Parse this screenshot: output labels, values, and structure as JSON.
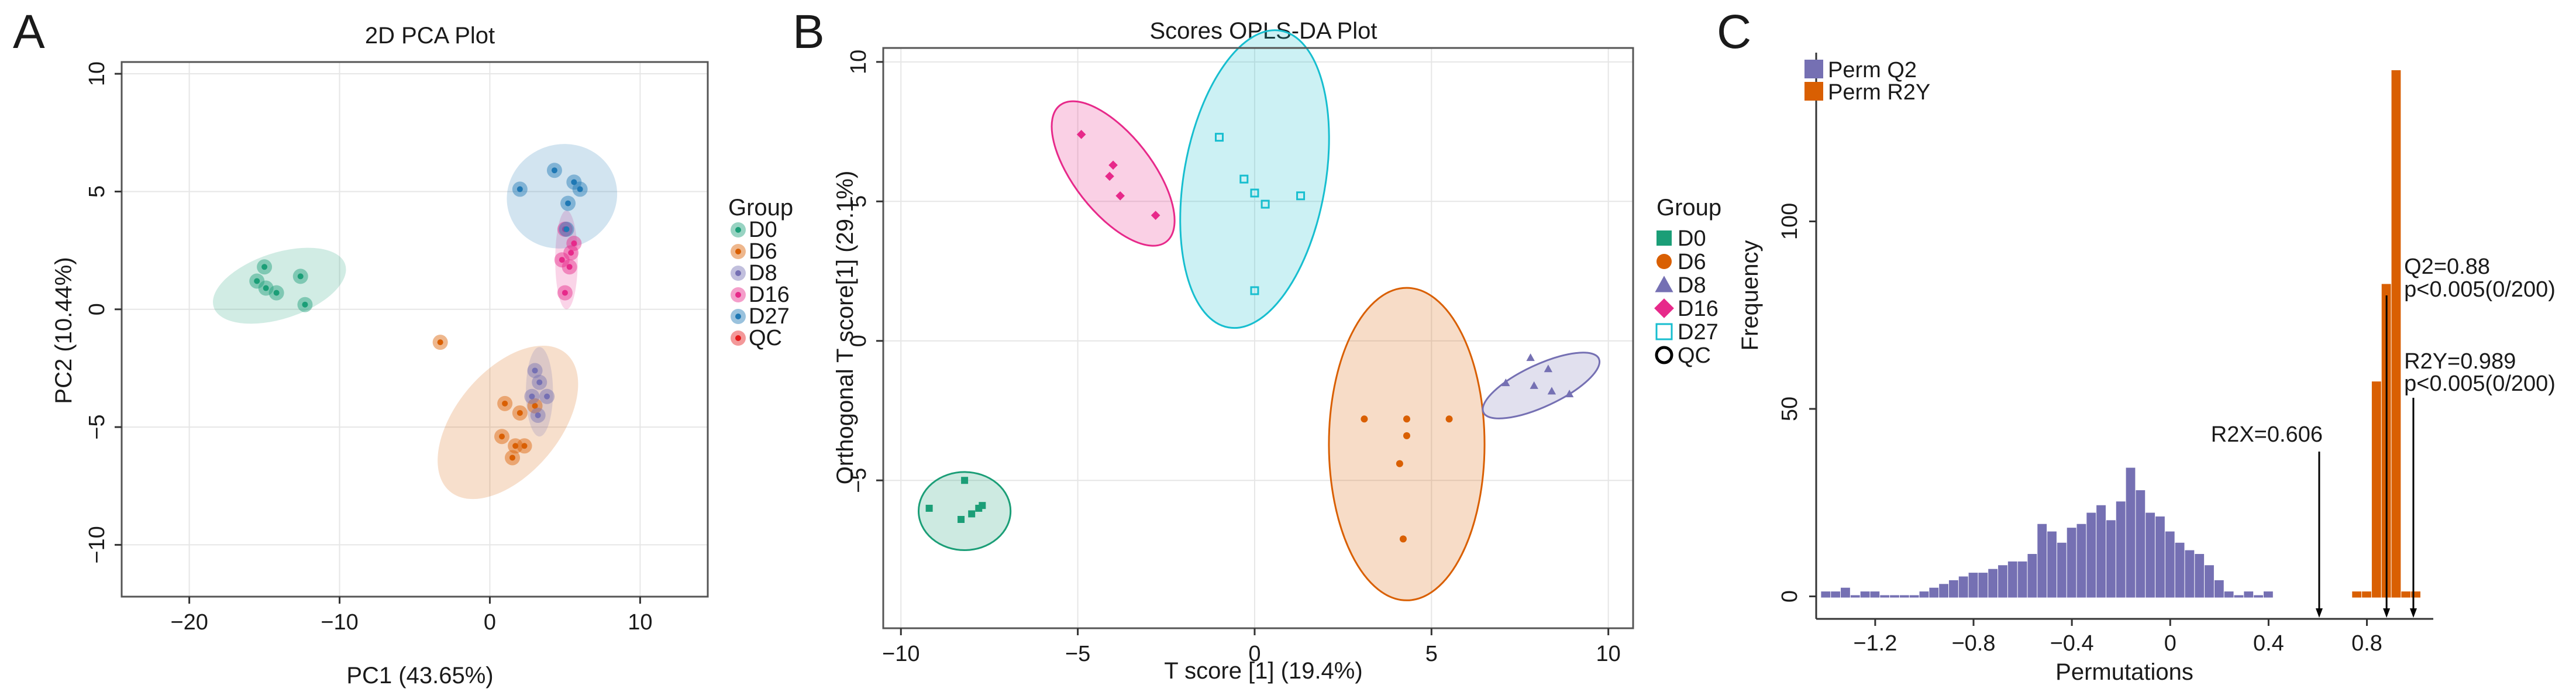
{
  "chart_data": [
    {
      "type": "scatter",
      "panel_letter": "A",
      "title": "2D PCA Plot",
      "xlabel": "PC1 (43.65%)",
      "ylabel": "PC2 (10.44%)",
      "xlim": [
        -24.5,
        14.5
      ],
      "ylim": [
        -12.2,
        10.5
      ],
      "xticks": [
        -20,
        -10,
        0,
        10
      ],
      "xtick_labels": [
        "−20",
        "−10",
        "0",
        "10"
      ],
      "yticks": [
        10,
        5,
        0,
        -5,
        -10
      ],
      "ytick_labels": [
        "10",
        "5",
        "0",
        "−5",
        "−10"
      ],
      "grid": true,
      "legend": {
        "title": "Group",
        "position": "right",
        "entries": [
          {
            "label": "D0",
            "color": "#1b9e77"
          },
          {
            "label": "D6",
            "color": "#d95f02"
          },
          {
            "label": "D8",
            "color": "#7570b3"
          },
          {
            "label": "D16",
            "color": "#e7298a"
          },
          {
            "label": "D27",
            "color": "#1f78b4"
          },
          {
            "label": "QC",
            "color": "#e41a1c"
          }
        ]
      },
      "series": [
        {
          "name": "D0",
          "color": "#1b9e77",
          "points": [
            [
              -15.5,
              1.2
            ],
            [
              -14.9,
              0.9
            ],
            [
              -15.0,
              1.8
            ],
            [
              -14.2,
              0.7
            ],
            [
              -12.6,
              1.4
            ],
            [
              -12.3,
              0.2
            ]
          ],
          "ellipse": {
            "cx": -14.0,
            "cy": 1.0,
            "rx": 4.6,
            "ry": 1.4,
            "angle": -18
          }
        },
        {
          "name": "D6",
          "color": "#d95f02",
          "points": [
            [
              -3.3,
              -1.4
            ],
            [
              1.0,
              -4.0
            ],
            [
              2.0,
              -4.4
            ],
            [
              3.0,
              -4.1
            ],
            [
              0.8,
              -5.4
            ],
            [
              1.7,
              -5.8
            ],
            [
              2.3,
              -5.8
            ],
            [
              1.5,
              -6.3
            ]
          ],
          "ellipse": {
            "cx": 1.2,
            "cy": -4.8,
            "rx": 6.0,
            "ry": 2.2,
            "angle": -50
          }
        },
        {
          "name": "D8",
          "color": "#7570b3",
          "points": [
            [
              3.0,
              -2.6
            ],
            [
              3.3,
              -3.1
            ],
            [
              2.8,
              -3.7
            ],
            [
              3.8,
              -3.7
            ],
            [
              3.2,
              -4.5
            ]
          ],
          "ellipse": {
            "cx": 3.3,
            "cy": -3.5,
            "rx": 0.9,
            "ry": 1.9,
            "angle": 0
          }
        },
        {
          "name": "D16",
          "color": "#e7298a",
          "points": [
            [
              5.0,
              3.4
            ],
            [
              5.6,
              2.8
            ],
            [
              5.4,
              2.4
            ],
            [
              4.8,
              2.1
            ],
            [
              5.3,
              1.8
            ],
            [
              5.0,
              0.7
            ]
          ],
          "ellipse": {
            "cx": 5.1,
            "cy": 2.1,
            "rx": 0.75,
            "ry": 2.1,
            "angle": 0
          }
        },
        {
          "name": "D27",
          "color": "#1f78b4",
          "points": [
            [
              2.0,
              5.1
            ],
            [
              4.3,
              5.9
            ],
            [
              5.6,
              5.4
            ],
            [
              6.0,
              5.1
            ],
            [
              5.2,
              4.5
            ],
            [
              5.1,
              3.4
            ]
          ],
          "ellipse": {
            "cx": 4.8,
            "cy": 4.8,
            "rx": 3.7,
            "ry": 2.2,
            "angle": -20
          }
        },
        {
          "name": "QC",
          "color": "#e41a1c",
          "points": []
        }
      ]
    },
    {
      "type": "scatter",
      "panel_letter": "B",
      "title": "Scores OPLS-DA Plot",
      "xlabel": "T  score [1] (19.4%)",
      "ylabel": "Orthogonal T score[1] (29.1%)",
      "xlim": [
        -10.5,
        10.7
      ],
      "ylim": [
        -10.3,
        10.5
      ],
      "xticks": [
        -10,
        -5,
        0,
        5,
        10
      ],
      "xtick_labels": [
        "−10",
        "−5",
        "0",
        "5",
        "10"
      ],
      "yticks": [
        10,
        5,
        0,
        -5
      ],
      "ytick_labels": [
        "10",
        "5",
        "0",
        "−5"
      ],
      "grid": true,
      "legend": {
        "title": "Group",
        "position": "right",
        "entries": [
          {
            "label": "D0",
            "color": "#1b9e77",
            "marker": "square"
          },
          {
            "label": "D6",
            "color": "#d95f02",
            "marker": "circle"
          },
          {
            "label": "D8",
            "color": "#7570b3",
            "marker": "triangle"
          },
          {
            "label": "D16",
            "color": "#e7298a",
            "marker": "diamond"
          },
          {
            "label": "D27",
            "color": "#17becf",
            "marker": "open-square"
          },
          {
            "label": "QC",
            "color": "#000000",
            "marker": "open-circle"
          }
        ]
      },
      "series": [
        {
          "name": "D0",
          "color": "#1b9e77",
          "marker": "square",
          "points": [
            [
              -9.2,
              -6.0
            ],
            [
              -8.2,
              -5.0
            ],
            [
              -7.8,
              -6.0
            ],
            [
              -8.0,
              -6.2
            ],
            [
              -8.3,
              -6.4
            ],
            [
              -7.7,
              -5.9
            ]
          ],
          "ellipse": {
            "cx": -8.2,
            "cy": -6.1,
            "rx": 1.3,
            "ry": 1.4,
            "angle": 0
          }
        },
        {
          "name": "D6",
          "color": "#d95f02",
          "marker": "circle",
          "points": [
            [
              3.1,
              -2.8
            ],
            [
              4.3,
              -2.8
            ],
            [
              5.5,
              -2.8
            ],
            [
              4.3,
              -3.4
            ],
            [
              4.1,
              -4.4
            ],
            [
              4.2,
              -7.1
            ]
          ],
          "ellipse": {
            "cx": 4.3,
            "cy": -3.7,
            "rx": 2.2,
            "ry": 5.6,
            "angle": 0
          }
        },
        {
          "name": "D8",
          "color": "#7570b3",
          "marker": "triangle",
          "points": [
            [
              7.8,
              -0.6
            ],
            [
              8.3,
              -1.0
            ],
            [
              7.1,
              -1.5
            ],
            [
              7.9,
              -1.6
            ],
            [
              8.4,
              -1.8
            ],
            [
              8.9,
              -1.9
            ]
          ],
          "ellipse": {
            "cx": 8.1,
            "cy": -1.6,
            "rx": 1.8,
            "ry": 0.75,
            "angle": -25
          }
        },
        {
          "name": "D16",
          "color": "#e7298a",
          "marker": "diamond",
          "points": [
            [
              -4.9,
              7.4
            ],
            [
              -4.0,
              6.3
            ],
            [
              -4.1,
              5.9
            ],
            [
              -3.8,
              5.2
            ],
            [
              -2.8,
              4.5
            ]
          ],
          "ellipse": {
            "cx": -4.0,
            "cy": 6.0,
            "rx": 1.1,
            "ry": 3.1,
            "angle": -38
          }
        },
        {
          "name": "D27",
          "color": "#17becf",
          "marker": "open-square",
          "points": [
            [
              -1.0,
              7.3
            ],
            [
              -0.3,
              5.8
            ],
            [
              0.0,
              5.3
            ],
            [
              0.3,
              4.9
            ],
            [
              1.3,
              5.2
            ],
            [
              0.0,
              1.8
            ]
          ],
          "ellipse": {
            "cx": 0.0,
            "cy": 5.8,
            "rx": 2.0,
            "ry": 5.4,
            "angle": 10
          }
        },
        {
          "name": "QC",
          "color": "#000000",
          "marker": "open-circle",
          "points": []
        }
      ]
    },
    {
      "type": "bar",
      "panel_letter": "C",
      "title": "",
      "xlabel": "Permutations",
      "ylabel": "Frequency",
      "xlim": [
        -1.44,
        1.07
      ],
      "ylim": [
        -6,
        145
      ],
      "xticks": [
        -1.2,
        -0.8,
        -0.4,
        0,
        0.4,
        0.8
      ],
      "xtick_labels": [
        "−1.2",
        "−0.8",
        "−0.4",
        "0",
        "0.4",
        "0.8"
      ],
      "yticks": [
        0,
        50,
        100
      ],
      "ytick_labels": [
        "0",
        "50",
        "100"
      ],
      "bin_width": 0.04,
      "legend": {
        "position": "top-left",
        "entries": [
          {
            "label": "Perm Q2",
            "color": "#7570b3"
          },
          {
            "label": "Perm R2Y",
            "color": "#d95f02"
          }
        ]
      },
      "series": [
        {
          "name": "Perm Q2",
          "color": "#7570b3",
          "bins": [
            [
              -1.4,
              1
            ],
            [
              -1.36,
              1
            ],
            [
              -1.32,
              2
            ],
            [
              -1.28,
              0
            ],
            [
              -1.24,
              1
            ],
            [
              -1.2,
              1
            ],
            [
              -1.16,
              0
            ],
            [
              -1.12,
              0
            ],
            [
              -1.08,
              0
            ],
            [
              -1.04,
              0
            ],
            [
              -1.0,
              1
            ],
            [
              -0.96,
              2
            ],
            [
              -0.92,
              3
            ],
            [
              -0.88,
              4
            ],
            [
              -0.84,
              5
            ],
            [
              -0.8,
              6
            ],
            [
              -0.76,
              6
            ],
            [
              -0.72,
              7
            ],
            [
              -0.68,
              8
            ],
            [
              -0.64,
              9
            ],
            [
              -0.6,
              9
            ],
            [
              -0.56,
              11
            ],
            [
              -0.52,
              19
            ],
            [
              -0.48,
              17
            ],
            [
              -0.44,
              14
            ],
            [
              -0.4,
              18
            ],
            [
              -0.36,
              19
            ],
            [
              -0.32,
              22
            ],
            [
              -0.28,
              24
            ],
            [
              -0.24,
              20
            ],
            [
              -0.2,
              25
            ],
            [
              -0.16,
              34
            ],
            [
              -0.12,
              28
            ],
            [
              -0.08,
              22
            ],
            [
              -0.04,
              21
            ],
            [
              0.0,
              17
            ],
            [
              0.04,
              14
            ],
            [
              0.08,
              12
            ],
            [
              0.12,
              11
            ],
            [
              0.16,
              8
            ],
            [
              0.2,
              4
            ],
            [
              0.24,
              1
            ],
            [
              0.28,
              0
            ],
            [
              0.32,
              1
            ],
            [
              0.36,
              0
            ],
            [
              0.4,
              1
            ]
          ]
        },
        {
          "name": "Perm R2Y",
          "color": "#d95f02",
          "bins": [
            [
              0.76,
              1
            ],
            [
              0.8,
              1
            ],
            [
              0.84,
              57
            ],
            [
              0.88,
              83
            ],
            [
              0.92,
              140
            ],
            [
              0.96,
              1
            ],
            [
              1.0,
              1
            ]
          ]
        }
      ],
      "annotations": [
        {
          "text": "R2X=0.606",
          "x": 0.606
        },
        {
          "text": "Q2=0.88",
          "subtext": "p<0.005(0/200)",
          "x": 0.88
        },
        {
          "text": "R2Y=0.989",
          "subtext": "p<0.005(0/200)",
          "x": 0.989
        }
      ]
    }
  ]
}
